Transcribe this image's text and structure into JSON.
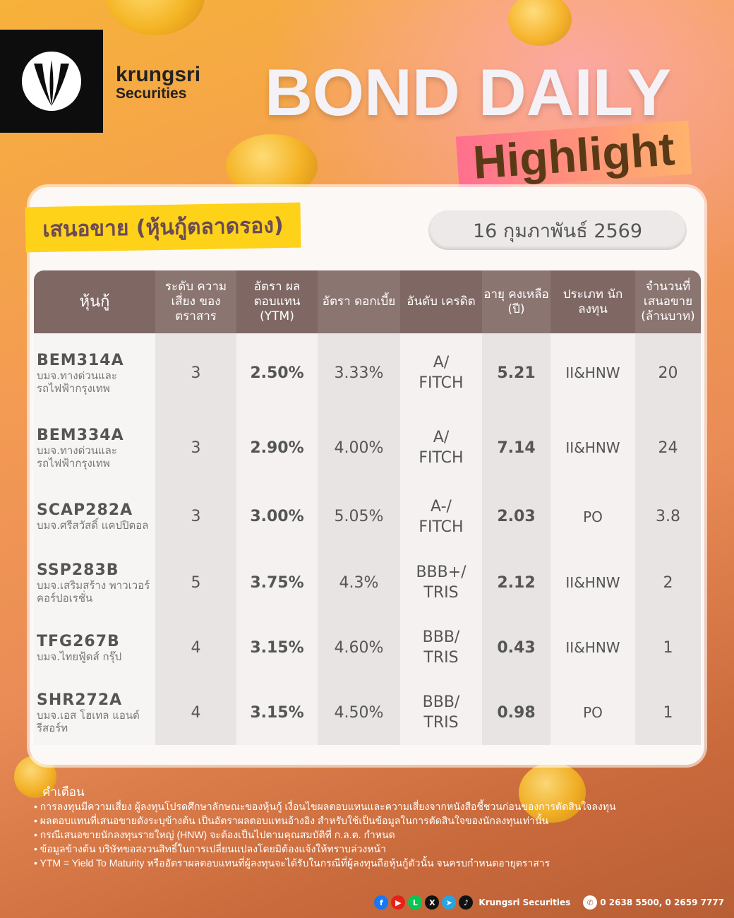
{
  "brand": {
    "line1": "krungsri",
    "line2": "Securities"
  },
  "title": {
    "main": "BOND DAILY",
    "sub": "Highlight"
  },
  "section_label": "เสนอขาย (หุ้นกู้ตลาดรอง)",
  "date": "16 กุมภาพันธ์ 2569",
  "table": {
    "headers": [
      "หุ้นกู้",
      "ระดับ ความเสี่ยง ของตราสาร",
      "อัตรา ผลตอบแทน (YTM)",
      "อัตรา ดอกเบี้ย",
      "อันดับ เครดิต",
      "อายุ คงเหลือ (ปี)",
      "ประเภท นักลงทุน",
      "จำนวนที่ เสนอขาย (ล้านบาท)"
    ],
    "rows": [
      {
        "code": "BEM314A",
        "issuer": "บมจ.ทางด่วนและรถไฟฟ้ากรุงเทพ",
        "risk": "3",
        "ytm": "2.50%",
        "coupon": "3.33%",
        "rating": "A/ FITCH",
        "tenor": "5.21",
        "investor": "II&HNW",
        "amount": "20"
      },
      {
        "code": "BEM334A",
        "issuer": "บมจ.ทางด่วนและรถไฟฟ้ากรุงเทพ",
        "risk": "3",
        "ytm": "2.90%",
        "coupon": "4.00%",
        "rating": "A/ FITCH",
        "tenor": "7.14",
        "investor": "II&HNW",
        "amount": "24"
      },
      {
        "code": "SCAP282A",
        "issuer": "บมจ.ศรีสวัสดิ์ แคปปิตอล",
        "risk": "3",
        "ytm": "3.00%",
        "coupon": "5.05%",
        "rating": "A-/ FITCH",
        "tenor": "2.03",
        "investor": "PO",
        "amount": "3.8"
      },
      {
        "code": "SSP283B",
        "issuer": "บมจ.เสริมสร้าง พาวเวอร์ คอร์ปอเรชั่น",
        "risk": "5",
        "ytm": "3.75%",
        "coupon": "4.3%",
        "rating": "BBB+/ TRIS",
        "tenor": "2.12",
        "investor": "II&HNW",
        "amount": "2"
      },
      {
        "code": "TFG267B",
        "issuer": "บมจ.ไทยฟู้ดส์ กรุ๊ป",
        "risk": "4",
        "ytm": "3.15%",
        "coupon": "4.60%",
        "rating": "BBB/ TRIS",
        "tenor": "0.43",
        "investor": "II&HNW",
        "amount": "1"
      },
      {
        "code": "SHR272A",
        "issuer": "บมจ.เอส โฮเทล แอนด์ รีสอร์ท",
        "risk": "4",
        "ytm": "3.15%",
        "coupon": "4.50%",
        "rating": "BBB/ TRIS",
        "tenor": "0.98",
        "investor": "PO",
        "amount": "1"
      }
    ]
  },
  "warning": {
    "title": "คำเตือน",
    "items": [
      "การลงทุนมีความเสี่ยง ผู้ลงทุนโปรดศึกษาลักษณะของหุ้นกู้ เงื่อนไขผลตอบแทนและความเสี่ยงจากหนังสือชี้ชวนก่อนของการตัดสินใจลงทุน",
      "ผลตอบแทนที่เสนอขายดังระบุข้างต้น เป็นอัตราผลตอบแทนอ้างอิง สำหรับใช้เป็นข้อมูลในการตัดสินใจของนักลงทุนเท่านั้น",
      "กรณีเสนอขายนักลงทุนรายใหญ่ (HNW) จะต้องเป็นไปตามคุณสมบัติที่ ก.ล.ต. กำหนด",
      "ข้อมูลข้างต้น บริษัทขอสงวนสิทธิ์ในการเปลี่ยนแปลงโดยมิต้องแจ้งให้ทราบล่วงหน้า",
      "YTM = Yield To Maturity หรืออัตราผลตอบแทนที่ผู้ลงทุนจะได้รับในกรณีที่ผู้ลงทุนถือหุ้นกู้ตัวนั้น จนครบกำหนดอายุตราสาร"
    ]
  },
  "footer": {
    "social": [
      {
        "icon": "facebook-icon",
        "color": "#1877f2",
        "glyph": "f"
      },
      {
        "icon": "youtube-icon",
        "color": "#e62117",
        "glyph": "▶"
      },
      {
        "icon": "line-icon",
        "color": "#06c755",
        "glyph": "L"
      },
      {
        "icon": "x-icon",
        "color": "#111111",
        "glyph": "X"
      },
      {
        "icon": "telegram-icon",
        "color": "#2aa3df",
        "glyph": "➤"
      },
      {
        "icon": "tiktok-icon",
        "color": "#111111",
        "glyph": "♪"
      }
    ],
    "name": "Krungsri Securities",
    "phone": "0 2638 5500, 0 2659 7777"
  }
}
